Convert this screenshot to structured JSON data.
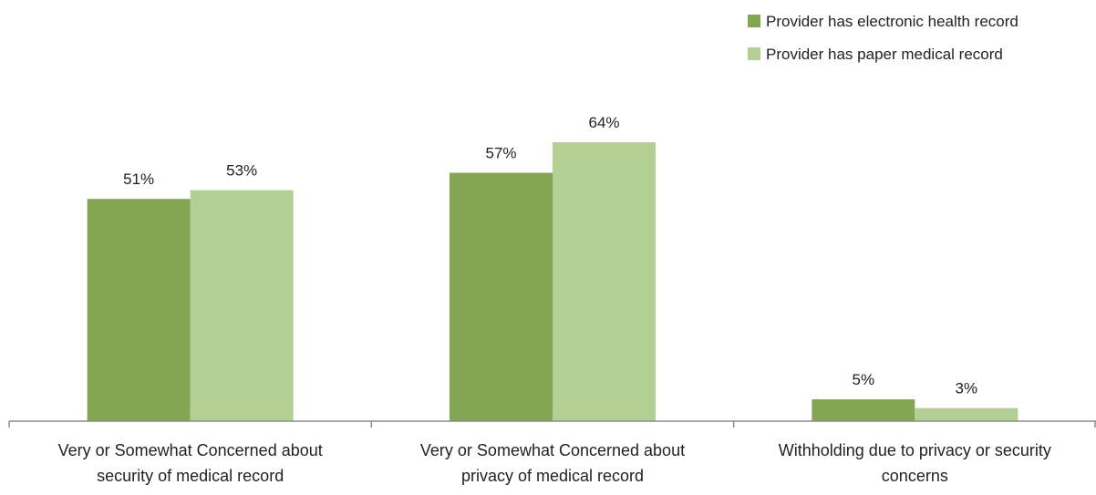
{
  "chart_data": {
    "type": "bar",
    "categories": [
      [
        "Very or Somewhat Concerned about",
        "security of medical record"
      ],
      [
        "Very or Somewhat Concerned about",
        "privacy of medical record"
      ],
      [
        "Withholding due to privacy or security",
        "concerns"
      ]
    ],
    "series": [
      {
        "name": "Provider has electronic health record",
        "values": [
          51,
          57,
          5
        ],
        "labels": [
          "51%",
          "57%",
          "5%"
        ],
        "color": "#82a652"
      },
      {
        "name": "Provider has paper medical record",
        "values": [
          53,
          64,
          3
        ],
        "labels": [
          "53%",
          "64%",
          "3%"
        ],
        "color": "#b3cf94"
      }
    ],
    "title": "",
    "xlabel": "",
    "ylabel": "",
    "ylim": [
      0,
      100
    ],
    "grid": false,
    "legend_position": "top-right",
    "axis_color": "#8c8c8c"
  }
}
